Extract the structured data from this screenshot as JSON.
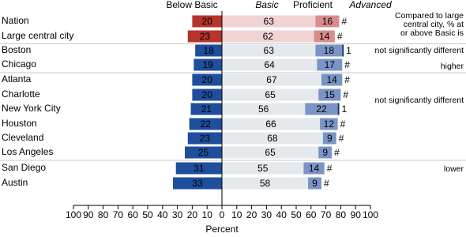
{
  "chart_data": {
    "type": "diverging_bar",
    "categories": [
      "Nation",
      "Large central city",
      "Boston",
      "Chicago",
      "Atlanta",
      "Charlotte",
      "New York City",
      "Houston",
      "Cleveland",
      "Los Angeles",
      "San Diego",
      "Austin"
    ],
    "category_colors": [
      "#b03a2e",
      "#b03a2e",
      "#000000",
      "#000000",
      "#000000",
      "#000000",
      "#000000",
      "#000000",
      "#000000",
      "#000000",
      "#000000",
      "#000000"
    ],
    "series": [
      {
        "name": "Below Basic",
        "direction": "left",
        "colors": [
          "#b5342b",
          "#b5342b",
          "#1f4e9c",
          "#1f4e9c",
          "#1f4e9c",
          "#1f4e9c",
          "#1f4e9c",
          "#1f4e9c",
          "#1f4e9c",
          "#1f4e9c",
          "#1f4e9c",
          "#1f4e9c"
        ],
        "text_color": "#ffffff",
        "values": [
          20,
          23,
          18,
          19,
          20,
          20,
          21,
          22,
          23,
          25,
          31,
          33
        ]
      },
      {
        "name": "Basic",
        "direction": "right",
        "colors": [
          "#f2d3d3",
          "#f2d3d3",
          "#e4e9ee",
          "#e4e9ee",
          "#e4e9ee",
          "#e4e9ee",
          "#e4e9ee",
          "#e4e9ee",
          "#e4e9ee",
          "#e4e9ee",
          "#e4e9ee",
          "#e4e9ee"
        ],
        "text_color": "#222222",
        "values": [
          63,
          62,
          63,
          64,
          67,
          65,
          56,
          66,
          68,
          65,
          55,
          58
        ]
      },
      {
        "name": "Proficient",
        "direction": "right",
        "colors": [
          "#d98c8c",
          "#d98c8c",
          "#7b94c6",
          "#7b94c6",
          "#7b94c6",
          "#7b94c6",
          "#7b94c6",
          "#7b94c6",
          "#7b94c6",
          "#7b94c6",
          "#7b94c6",
          "#7b94c6"
        ],
        "text_color": "#ffffff",
        "values": [
          16,
          14,
          18,
          17,
          14,
          15,
          22,
          12,
          9,
          9,
          14,
          9
        ]
      },
      {
        "name": "Advanced",
        "direction": "right",
        "colors": [
          "#8a1f1a",
          "#8a1f1a",
          "#0d2f66",
          "#0d2f66",
          "#0d2f66",
          "#0d2f66",
          "#0d2f66",
          "#0d2f66",
          "#0d2f66",
          "#0d2f66",
          "#0d2f66",
          "#0d2f66"
        ],
        "text_color": "#000000",
        "values": [
          0,
          0,
          1,
          0,
          0,
          0,
          1,
          0,
          0,
          0,
          0,
          0
        ],
        "value_labels": [
          "#",
          "#",
          "1",
          "#",
          "#",
          "#",
          "1",
          "#",
          "#",
          "#",
          "#",
          "#"
        ]
      }
    ],
    "italic_series": [
      "Basic",
      "Advanced"
    ],
    "xlabel": "Percent",
    "xlim": [
      -100,
      100
    ],
    "xticks": [
      {
        "value": -100,
        "label": "100"
      },
      {
        "value": -90,
        "label": "90"
      },
      {
        "value": -80,
        "label": "80"
      },
      {
        "value": -70,
        "label": "70"
      },
      {
        "value": -60,
        "label": "60"
      },
      {
        "value": -50,
        "label": "50"
      },
      {
        "value": -40,
        "label": "40"
      },
      {
        "value": -30,
        "label": "30"
      },
      {
        "value": -20,
        "label": "20"
      },
      {
        "value": -10,
        "label": "10"
      },
      0,
      10,
      20,
      30,
      40,
      50,
      60,
      70,
      80,
      90,
      100
    ],
    "comparison_header": [
      "Compared to large",
      "central city, % at",
      "or above Basic is"
    ],
    "comparisons": [
      "not significantly different",
      "higher",
      "not significantly different",
      "lower"
    ]
  }
}
